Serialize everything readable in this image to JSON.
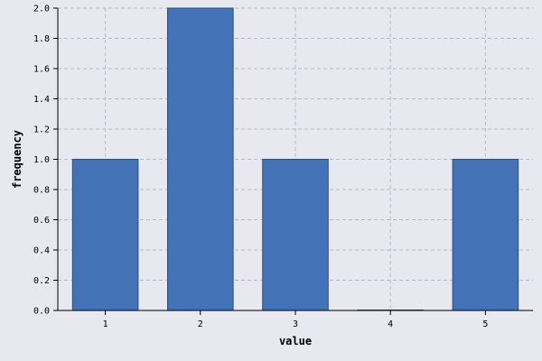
{
  "chart_data": {
    "type": "bar",
    "title": "",
    "xlabel": "value",
    "ylabel": "frequency",
    "categories": [
      "1",
      "2",
      "3",
      "4",
      "5"
    ],
    "values": [
      1,
      2,
      1,
      0,
      1
    ],
    "ylim": [
      0,
      2
    ],
    "yticks": [
      "0.0",
      "0.2",
      "0.4",
      "0.6",
      "0.8",
      "1.0",
      "1.2",
      "1.4",
      "1.6",
      "1.8",
      "2.0"
    ],
    "ytick_values": [
      0,
      0.2,
      0.4,
      0.6,
      0.8,
      1.0,
      1.2,
      1.4,
      1.6,
      1.8,
      2.0
    ],
    "grid": true,
    "colors": {
      "bar": "#4373b6",
      "background": "#e8e8f0",
      "grid": "#b8b8c4"
    }
  }
}
